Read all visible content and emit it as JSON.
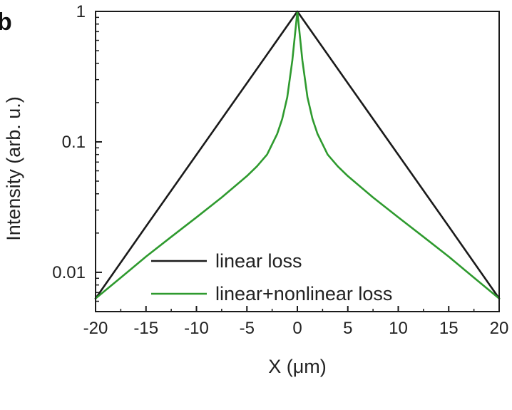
{
  "panel_label": "b",
  "chart_data": {
    "type": "line",
    "xlabel": "X (μm)",
    "ylabel": "Intensity (arb. u.)",
    "xlim": [
      -20,
      20
    ],
    "ylim": [
      0.005,
      1
    ],
    "yscale": "log",
    "xticks": [
      -20,
      -15,
      -10,
      -5,
      0,
      5,
      10,
      15,
      20
    ],
    "xtick_labels": [
      "-20",
      "-15",
      "-10",
      "-5",
      "0",
      "5",
      "10",
      "15",
      "20"
    ],
    "yticks": [
      0.01,
      0.1,
      1
    ],
    "ytick_labels": [
      "0.01",
      "0.1",
      "1"
    ],
    "grid": false,
    "legend_position": "bottom-center",
    "series": [
      {
        "name": "linear loss",
        "color": "#1a1a1a",
        "x": [
          -20,
          -15,
          -10,
          -5,
          0,
          5,
          10,
          15,
          20
        ],
        "y": [
          0.0063,
          0.0225,
          0.0797,
          0.282,
          1.0,
          0.282,
          0.0797,
          0.0225,
          0.0063
        ]
      },
      {
        "name": "linear+nonlinear loss",
        "color": "#2e9a2e",
        "x": [
          -20,
          -17.5,
          -15,
          -12.5,
          -10,
          -7.5,
          -5,
          -4,
          -3,
          -2,
          -1.5,
          -1,
          -0.5,
          0,
          0.5,
          1,
          1.5,
          2,
          3,
          4,
          5,
          7.5,
          10,
          12.5,
          15,
          17.5,
          20
        ],
        "y": [
          0.0063,
          0.0091,
          0.0132,
          0.0187,
          0.0264,
          0.0375,
          0.0547,
          0.065,
          0.08,
          0.115,
          0.15,
          0.22,
          0.42,
          1.0,
          0.42,
          0.22,
          0.15,
          0.115,
          0.08,
          0.065,
          0.0547,
          0.0375,
          0.0264,
          0.0187,
          0.0132,
          0.0091,
          0.0063
        ]
      }
    ]
  }
}
